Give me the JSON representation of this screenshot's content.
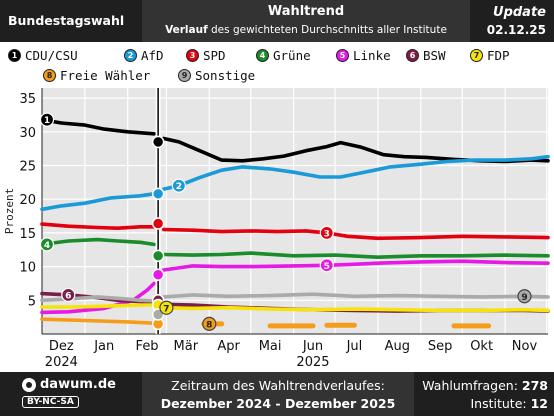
{
  "header": {
    "left": "Bundestagswahl",
    "title": "Wahltrend",
    "subtitle_bold": "Verlauf",
    "subtitle_rest": " des gewichteten Durchschnitts aller Institute",
    "update_label": "Update",
    "update_date": "02.12.25"
  },
  "footer": {
    "brand": "dawum.de",
    "license": "BY-NC-SA",
    "range_label": "Zeitraum des Wahltrendverlaufes:",
    "range_value": "Dezember 2024 - Dezember 2025",
    "polls_label": "Wahlumfragen:",
    "polls_value": "278",
    "institutes_label": "Institute:",
    "institutes_value": "12"
  },
  "chart_data": {
    "type": "line",
    "ylabel": "Prozent",
    "ylim": [
      0,
      36.5
    ],
    "yticks": [
      0,
      5,
      10,
      15,
      20,
      25,
      30,
      35
    ],
    "xlim": [
      "2024-12-01",
      "2025-12-02"
    ],
    "xticks": [
      {
        "label": "Dez",
        "date": "2024-12-15"
      },
      {
        "label": "Jan",
        "date": "2025-01-15"
      },
      {
        "label": "Feb",
        "date": "2025-02-15"
      },
      {
        "label": "Mär",
        "date": "2025-03-15"
      },
      {
        "label": "Apr",
        "date": "2025-04-15"
      },
      {
        "label": "Mai",
        "date": "2025-05-15"
      },
      {
        "label": "Jun",
        "date": "2025-06-15"
      },
      {
        "label": "Jul",
        "date": "2025-07-15"
      },
      {
        "label": "Aug",
        "date": "2025-08-15"
      },
      {
        "label": "Sep",
        "date": "2025-09-15"
      },
      {
        "label": "Okt",
        "date": "2025-10-15"
      },
      {
        "label": "Nov",
        "date": "2025-11-15"
      }
    ],
    "year_labels": [
      {
        "label": "2024",
        "date": "2024-12-15"
      },
      {
        "label": "2025",
        "date": "2025-06-15"
      }
    ],
    "election": {
      "date": "2025-02-23",
      "results": [
        28.5,
        20.8,
        16.4,
        11.6,
        8.8,
        5.0,
        4.3,
        1.5,
        2.9
      ]
    },
    "grid": true,
    "legend_position": "top",
    "series": [
      {
        "name": "CDU/CSU",
        "num": "1",
        "color": "#000000",
        "label_at": "start",
        "points": [
          [
            "2024-12-01",
            31.8
          ],
          [
            "2024-12-15",
            31.3
          ],
          [
            "2025-01-01",
            31.0
          ],
          [
            "2025-01-15",
            30.4
          ],
          [
            "2025-02-01",
            30.0
          ],
          [
            "2025-02-20",
            29.7
          ],
          [
            "2025-02-27",
            29.0
          ],
          [
            "2025-03-10",
            28.5
          ],
          [
            "2025-03-25",
            27.2
          ],
          [
            "2025-04-10",
            25.8
          ],
          [
            "2025-04-25",
            25.7
          ],
          [
            "2025-05-10",
            26.0
          ],
          [
            "2025-05-25",
            26.4
          ],
          [
            "2025-06-10",
            27.2
          ],
          [
            "2025-06-25",
            27.8
          ],
          [
            "2025-07-05",
            28.4
          ],
          [
            "2025-07-20",
            27.7
          ],
          [
            "2025-08-05",
            26.6
          ],
          [
            "2025-08-20",
            26.3
          ],
          [
            "2025-09-05",
            26.2
          ],
          [
            "2025-09-25",
            25.9
          ],
          [
            "2025-10-15",
            25.7
          ],
          [
            "2025-11-01",
            25.6
          ],
          [
            "2025-11-20",
            25.8
          ],
          [
            "2025-12-02",
            25.7
          ]
        ]
      },
      {
        "name": "AfD",
        "num": "2",
        "color": "#1a9ad6",
        "label_at": "mid",
        "label_date": "2025-03-10",
        "points": [
          [
            "2024-12-01",
            18.5
          ],
          [
            "2024-12-15",
            19.0
          ],
          [
            "2025-01-01",
            19.4
          ],
          [
            "2025-01-20",
            20.2
          ],
          [
            "2025-02-10",
            20.5
          ],
          [
            "2025-02-20",
            20.8
          ],
          [
            "2025-02-27",
            21.5
          ],
          [
            "2025-03-10",
            22.0
          ],
          [
            "2025-03-25",
            23.2
          ],
          [
            "2025-04-10",
            24.3
          ],
          [
            "2025-04-25",
            24.8
          ],
          [
            "2025-05-15",
            24.5
          ],
          [
            "2025-06-01",
            24.0
          ],
          [
            "2025-06-20",
            23.3
          ],
          [
            "2025-07-05",
            23.3
          ],
          [
            "2025-07-20",
            23.9
          ],
          [
            "2025-08-10",
            24.8
          ],
          [
            "2025-09-01",
            25.2
          ],
          [
            "2025-09-20",
            25.6
          ],
          [
            "2025-10-10",
            25.8
          ],
          [
            "2025-11-01",
            25.8
          ],
          [
            "2025-11-20",
            26.0
          ],
          [
            "2025-12-02",
            26.3
          ]
        ]
      },
      {
        "name": "SPD",
        "num": "3",
        "color": "#e3000f",
        "label_at": "mid",
        "label_date": "2025-06-25",
        "points": [
          [
            "2024-12-01",
            16.3
          ],
          [
            "2024-12-20",
            16.0
          ],
          [
            "2025-01-10",
            15.8
          ],
          [
            "2025-01-25",
            15.7
          ],
          [
            "2025-02-10",
            15.9
          ],
          [
            "2025-02-20",
            15.9
          ],
          [
            "2025-02-27",
            15.5
          ],
          [
            "2025-03-20",
            15.4
          ],
          [
            "2025-04-10",
            15.2
          ],
          [
            "2025-05-01",
            15.3
          ],
          [
            "2025-05-20",
            15.2
          ],
          [
            "2025-06-10",
            15.3
          ],
          [
            "2025-06-25",
            15.0
          ],
          [
            "2025-07-10",
            14.5
          ],
          [
            "2025-08-01",
            14.2
          ],
          [
            "2025-09-01",
            14.3
          ],
          [
            "2025-10-01",
            14.5
          ],
          [
            "2025-11-01",
            14.4
          ],
          [
            "2025-12-02",
            14.3
          ]
        ]
      },
      {
        "name": "Grüne",
        "num": "4",
        "color": "#1a8c2a",
        "label_at": "start",
        "points": [
          [
            "2024-12-01",
            13.3
          ],
          [
            "2024-12-20",
            13.8
          ],
          [
            "2025-01-10",
            14.0
          ],
          [
            "2025-01-25",
            13.8
          ],
          [
            "2025-02-10",
            13.6
          ],
          [
            "2025-02-20",
            13.3
          ],
          [
            "2025-02-27",
            11.8
          ],
          [
            "2025-03-20",
            11.7
          ],
          [
            "2025-04-10",
            11.8
          ],
          [
            "2025-05-01",
            12.0
          ],
          [
            "2025-06-01",
            11.6
          ],
          [
            "2025-07-01",
            11.7
          ],
          [
            "2025-08-01",
            11.4
          ],
          [
            "2025-09-01",
            11.6
          ],
          [
            "2025-10-01",
            11.6
          ],
          [
            "2025-11-01",
            11.7
          ],
          [
            "2025-12-02",
            11.6
          ]
        ]
      },
      {
        "name": "Linke",
        "num": "5",
        "color": "#e619e6",
        "label_at": "mid",
        "label_date": "2025-06-25",
        "points": [
          [
            "2024-12-01",
            3.2
          ],
          [
            "2024-12-20",
            3.3
          ],
          [
            "2025-01-15",
            3.8
          ],
          [
            "2025-02-05",
            5.0
          ],
          [
            "2025-02-15",
            6.5
          ],
          [
            "2025-02-20",
            7.5
          ],
          [
            "2025-02-27",
            9.5
          ],
          [
            "2025-03-20",
            10.1
          ],
          [
            "2025-04-10",
            10.0
          ],
          [
            "2025-05-01",
            10.0
          ],
          [
            "2025-06-01",
            10.1
          ],
          [
            "2025-06-25",
            10.2
          ],
          [
            "2025-07-10",
            10.3
          ],
          [
            "2025-08-01",
            10.5
          ],
          [
            "2025-09-01",
            10.7
          ],
          [
            "2025-10-01",
            10.8
          ],
          [
            "2025-11-01",
            10.6
          ],
          [
            "2025-12-02",
            10.5
          ]
        ]
      },
      {
        "name": "BSW",
        "num": "6",
        "color": "#7a1e4a",
        "label_at": "mid",
        "label_date": "2024-12-20",
        "points": [
          [
            "2024-12-01",
            6.0
          ],
          [
            "2024-12-20",
            5.8
          ],
          [
            "2025-01-10",
            5.4
          ],
          [
            "2025-01-25",
            5.0
          ],
          [
            "2025-02-10",
            4.8
          ],
          [
            "2025-02-20",
            4.6
          ],
          [
            "2025-02-27",
            4.4
          ],
          [
            "2025-03-20",
            4.3
          ],
          [
            "2025-04-15",
            4.0
          ],
          [
            "2025-05-15",
            3.8
          ],
          [
            "2025-06-15",
            3.6
          ],
          [
            "2025-07-15",
            3.5
          ],
          [
            "2025-08-15",
            3.4
          ],
          [
            "2025-09-15",
            3.5
          ],
          [
            "2025-10-15",
            3.5
          ],
          [
            "2025-11-15",
            3.5
          ],
          [
            "2025-12-02",
            3.4
          ]
        ]
      },
      {
        "name": "FDP",
        "num": "7",
        "color": "#f5e30a",
        "label_at": "mid",
        "label_date": "2025-03-01",
        "points": [
          [
            "2024-12-01",
            4.0
          ],
          [
            "2024-12-20",
            4.0
          ],
          [
            "2025-01-10",
            4.1
          ],
          [
            "2025-01-25",
            4.2
          ],
          [
            "2025-02-10",
            4.3
          ],
          [
            "2025-02-20",
            4.3
          ],
          [
            "2025-02-27",
            3.9
          ],
          [
            "2025-03-20",
            3.8
          ],
          [
            "2025-04-15",
            3.9
          ],
          [
            "2025-05-15",
            3.7
          ],
          [
            "2025-06-15",
            3.6
          ],
          [
            "2025-07-15",
            3.7
          ],
          [
            "2025-08-15",
            3.6
          ],
          [
            "2025-09-15",
            3.5
          ],
          [
            "2025-10-15",
            3.5
          ],
          [
            "2025-11-15",
            3.6
          ],
          [
            "2025-12-02",
            3.5
          ]
        ]
      },
      {
        "name": "Freie Wähler",
        "num": "8",
        "color": "#f59c1a",
        "label_at": "mid",
        "label_date": "2025-04-01",
        "points": [
          [
            "2024-12-01",
            2.2
          ],
          [
            "2025-01-01",
            2.0
          ],
          [
            "2025-02-01",
            1.8
          ],
          [
            "2025-02-20",
            1.6
          ]
        ],
        "segments": [
          [
            "2025-03-28",
            "2025-04-10",
            1.5
          ],
          [
            "2025-05-15",
            "2025-06-15",
            1.2
          ],
          [
            "2025-06-25",
            "2025-07-15",
            1.3
          ],
          [
            "2025-09-25",
            "2025-10-20",
            1.2
          ]
        ]
      },
      {
        "name": "Sonstige",
        "num": "9",
        "color": "#aaaaaa",
        "label_at": "mid",
        "label_date": "2025-11-15",
        "points": [
          [
            "2024-12-01",
            5.0
          ],
          [
            "2024-12-20",
            5.2
          ],
          [
            "2025-01-10",
            5.5
          ],
          [
            "2025-01-25",
            5.3
          ],
          [
            "2025-02-10",
            5.0
          ],
          [
            "2025-02-20",
            4.9
          ],
          [
            "2025-02-27",
            5.5
          ],
          [
            "2025-03-20",
            5.8
          ],
          [
            "2025-04-15",
            5.6
          ],
          [
            "2025-05-15",
            5.7
          ],
          [
            "2025-06-15",
            5.9
          ],
          [
            "2025-07-15",
            5.6
          ],
          [
            "2025-08-15",
            5.7
          ],
          [
            "2025-09-15",
            5.6
          ],
          [
            "2025-10-15",
            5.5
          ],
          [
            "2025-11-15",
            5.6
          ],
          [
            "2025-12-02",
            5.5
          ]
        ]
      }
    ]
  }
}
